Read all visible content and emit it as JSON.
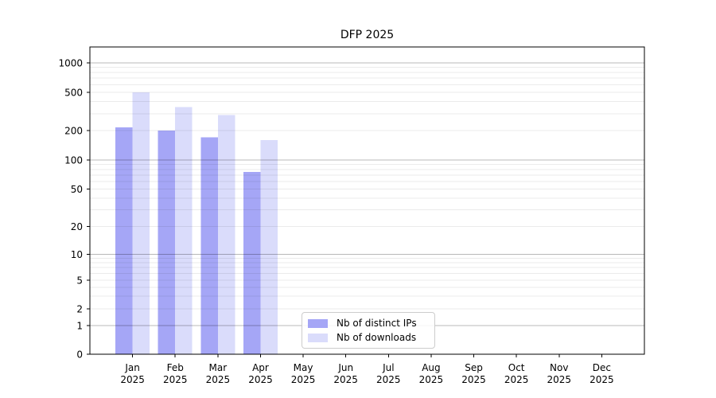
{
  "figure": {
    "background": "#ffffff"
  },
  "chart_data": {
    "type": "bar",
    "title": "DFP 2025",
    "categories": [
      "Jan",
      "Feb",
      "Mar",
      "Apr",
      "May",
      "Jun",
      "Jul",
      "Aug",
      "Sep",
      "Oct",
      "Nov",
      "Dec"
    ],
    "x_tick_year": "2025",
    "series": [
      {
        "name": "Nb of distinct IPs",
        "color": "#a5a6f6",
        "values": [
          215,
          200,
          170,
          75,
          0,
          0,
          0,
          0,
          0,
          0,
          0,
          0
        ]
      },
      {
        "name": "Nb of downloads",
        "color": "#dadcfb",
        "values": [
          500,
          350,
          290,
          160,
          0,
          0,
          0,
          0,
          0,
          0,
          0,
          0
        ]
      }
    ],
    "y_axis": {
      "scale": "symlog",
      "ticks": [
        0,
        1,
        2,
        5,
        10,
        20,
        50,
        100,
        200,
        500,
        1000
      ],
      "major_grid_values": [
        1,
        10,
        100,
        1000
      ],
      "ylim": [
        0,
        1450
      ]
    },
    "grid": "horizontal, log minors light + decade majors darker",
    "legend_position": "lower center",
    "xlabel": "",
    "ylabel": ""
  }
}
